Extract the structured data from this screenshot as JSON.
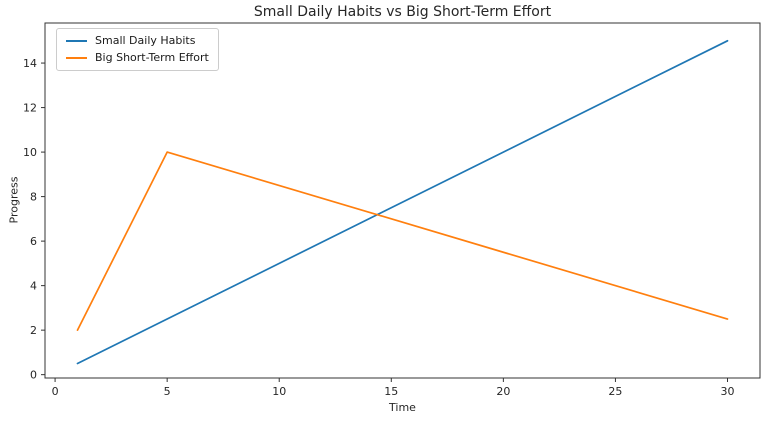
{
  "figure": {
    "background": "#ffffff",
    "text_color": "#262626",
    "spine_color": "#333333"
  },
  "chart_data": {
    "type": "line",
    "title": "Small Daily Habits vs Big Short-Term Effort",
    "xlabel": "Time",
    "ylabel": "Progress",
    "x": [
      1,
      5,
      30
    ],
    "series": [
      {
        "name": "Small Daily Habits",
        "color": "#1f77b4",
        "values": [
          0.5,
          2.5,
          15.0
        ]
      },
      {
        "name": "Big Short-Term Effort",
        "color": "#ff7f0e",
        "values": [
          2.0,
          10.0,
          2.5
        ]
      }
    ],
    "xticks": [
      0,
      5,
      10,
      15,
      20,
      25,
      30
    ],
    "yticks": [
      0,
      2,
      4,
      6,
      8,
      10,
      12,
      14
    ],
    "xlim": [
      -0.45,
      31.45
    ],
    "ylim": [
      -0.15,
      15.8
    ],
    "grid": false,
    "legend_position": "upper left"
  }
}
